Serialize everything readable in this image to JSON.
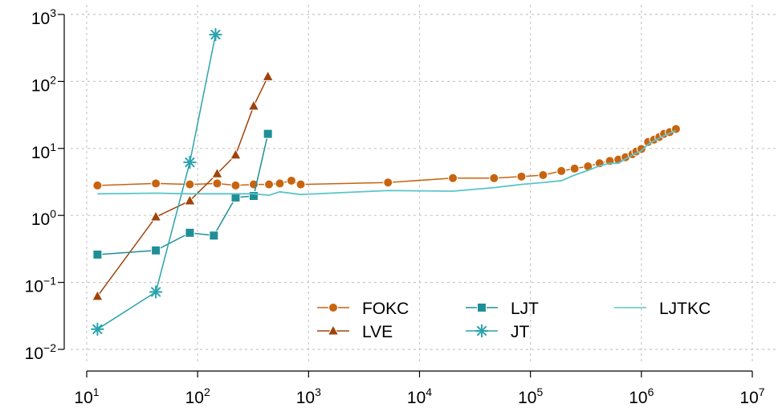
{
  "chart_data": {
    "type": "line",
    "xscale": "log",
    "yscale": "log",
    "grid": true,
    "legend_position": "bottom-right",
    "xlim": [
      10,
      10000000
    ],
    "ylim": [
      0.01,
      1000
    ],
    "xticks": [
      {
        "value": 10,
        "label": "10",
        "sup": "1"
      },
      {
        "value": 100,
        "label": "10",
        "sup": "2"
      },
      {
        "value": 1000,
        "label": "10",
        "sup": "3"
      },
      {
        "value": 10000,
        "label": "10",
        "sup": "4"
      },
      {
        "value": 100000,
        "label": "10",
        "sup": "5"
      },
      {
        "value": 1000000,
        "label": "10",
        "sup": "6"
      },
      {
        "value": 10000000,
        "label": "10",
        "sup": "7"
      }
    ],
    "yticks": [
      {
        "value": 0.01,
        "label": "10",
        "sup": "−2"
      },
      {
        "value": 0.1,
        "label": "10",
        "sup": "−1"
      },
      {
        "value": 1,
        "label": "10",
        "sup": "0"
      },
      {
        "value": 10,
        "label": "10",
        "sup": "1"
      },
      {
        "value": 100,
        "label": "10",
        "sup": "2"
      },
      {
        "value": 1000,
        "label": "10",
        "sup": "3"
      }
    ],
    "series": [
      {
        "name": "FOKC",
        "color": "#c8640f",
        "marker": "circle",
        "x": [
          12.5,
          42,
          85,
          150,
          220,
          320,
          440,
          550,
          700,
          850,
          5200,
          20000,
          47000,
          83000,
          130000,
          190000,
          250000,
          330000,
          420000,
          520000,
          620000,
          720000,
          830000,
          900000,
          1000000,
          1150000,
          1300000,
          1450000,
          1600000,
          1800000,
          2050000
        ],
        "values": [
          2.8,
          3.0,
          2.9,
          3.0,
          2.8,
          2.9,
          2.9,
          3.0,
          3.3,
          2.9,
          3.1,
          3.6,
          3.6,
          3.8,
          4.0,
          4.6,
          5.0,
          5.4,
          6.0,
          6.5,
          6.8,
          7.4,
          8.2,
          9.0,
          9.8,
          12.5,
          13.5,
          14.8,
          16.5,
          17.5,
          19.5
        ]
      },
      {
        "name": "LVE",
        "color": "#a0430a",
        "marker": "triangle",
        "x": [
          12.5,
          42,
          85,
          150,
          220,
          320,
          430
        ],
        "values": [
          0.062,
          0.95,
          1.65,
          4.2,
          8,
          43,
          118
        ]
      },
      {
        "name": "LJT",
        "color": "#1f8f97",
        "marker": "square",
        "x": [
          12.5,
          42,
          85,
          140,
          220,
          320,
          430
        ],
        "values": [
          0.26,
          0.3,
          0.55,
          0.5,
          1.85,
          1.95,
          16.5
        ]
      },
      {
        "name": "JT",
        "color": "#2aa3ad",
        "marker": "star",
        "x": [
          12.5,
          42,
          85,
          145
        ],
        "values": [
          0.02,
          0.072,
          6.2,
          500
        ]
      },
      {
        "name": "LJTKC",
        "color": "#5bc4c9",
        "marker": "none",
        "x": [
          12.5,
          42,
          85,
          150,
          220,
          320,
          440,
          550,
          850,
          5200,
          20000,
          47000,
          83000,
          130000,
          190000,
          250000,
          330000,
          420000,
          520000,
          620000,
          720000,
          830000,
          1000000,
          1150000,
          1300000,
          1600000,
          2050000
        ],
        "values": [
          2.1,
          2.15,
          2.1,
          2.1,
          2.1,
          2.1,
          2.0,
          2.25,
          2.05,
          2.35,
          2.3,
          2.6,
          2.9,
          3.1,
          3.3,
          4.0,
          4.7,
          5.5,
          6.0,
          6.0,
          7.0,
          8.0,
          9.2,
          11.5,
          13,
          15.5,
          18.5
        ]
      }
    ]
  }
}
